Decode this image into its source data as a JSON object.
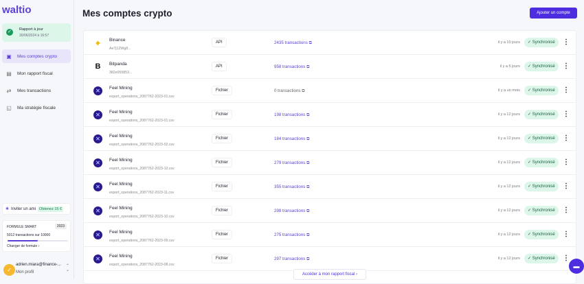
{
  "sidebar": {
    "logo": "waltio",
    "report_title": "Rapport à jour",
    "report_date": "30/06/2024 à 16:57",
    "items": [
      {
        "label": "Mes comptes crypto",
        "icon": "wallet-icon"
      },
      {
        "label": "Mon rapport fiscal",
        "icon": "document-icon"
      },
      {
        "label": "Mes transactions",
        "icon": "arrows-icon"
      },
      {
        "label": "Ma stratégie fiscale",
        "icon": "strategy-icon"
      }
    ],
    "invite": {
      "label": "Inviter un ami",
      "reward": "Obtenez 15 €"
    },
    "plan": {
      "name": "FORMULE SMART",
      "year": "2023",
      "usage": "5012 transactions sur 10000",
      "progress": 0.5012,
      "change": "Changer de formule"
    },
    "profile": {
      "email": "adrien.miara@finance-...",
      "link": "Mon profil"
    }
  },
  "header": {
    "title": "Mes comptes crypto",
    "add_button": "Ajouter un compte"
  },
  "accounts": [
    {
      "name": "Binance",
      "sub": "Ae7j1ZWg8...",
      "type": "API",
      "transactions": "2435 transactions",
      "ago": "il y a 10 jours",
      "status": "Synchronisé",
      "logo": "binance"
    },
    {
      "name": "Bitpanda",
      "sub": "382e059853...",
      "type": "API",
      "transactions": "958 transactions",
      "ago": "il y a 5 jours",
      "status": "Synchronisé",
      "logo": "bitpanda"
    },
    {
      "name": "Feel Mining",
      "sub": "export_operations_2087762-2023-01.csv",
      "type": "Fichier",
      "transactions": "0 transactions",
      "ago": "il y a un mois",
      "status": "Synchronisé",
      "logo": "feel"
    },
    {
      "name": "Feel Mining",
      "sub": "export_operations_2087762-2023-01.csv",
      "type": "Fichier",
      "transactions": "198 transactions",
      "ago": "il y a 12 jours",
      "status": "Synchronisé",
      "logo": "feel"
    },
    {
      "name": "Feel Mining",
      "sub": "export_operations_2087762-2023-02.csv",
      "type": "Fichier",
      "transactions": "184 transactions",
      "ago": "il y a 12 jours",
      "status": "Synchronisé",
      "logo": "feel"
    },
    {
      "name": "Feel Mining",
      "sub": "export_operations_2087762-2023-12.csv",
      "type": "Fichier",
      "transactions": "279 transactions",
      "ago": "il y a 12 jours",
      "status": "Synchronisé",
      "logo": "feel"
    },
    {
      "name": "Feel Mining",
      "sub": "export_operations_2087762-2023-11.csv",
      "type": "Fichier",
      "transactions": "355 transactions",
      "ago": "il y a 12 jours",
      "status": "Synchronisé",
      "logo": "feel"
    },
    {
      "name": "Feel Mining",
      "sub": "export_operations_2087762-2023-10.csv",
      "type": "Fichier",
      "transactions": "298 transactions",
      "ago": "il y a 12 jours",
      "status": "Synchronisé",
      "logo": "feel"
    },
    {
      "name": "Feel Mining",
      "sub": "export_operations_2087762-2023-09.csv",
      "type": "Fichier",
      "transactions": "275 transactions",
      "ago": "il y a 12 jours",
      "status": "Synchronisé",
      "logo": "feel"
    },
    {
      "name": "Feel Mining",
      "sub": "export_operations_2087762-2023-08.csv",
      "type": "Fichier",
      "transactions": "297 transactions",
      "ago": "il y a 12 jours",
      "status": "Synchronisé",
      "logo": "feel"
    }
  ],
  "footer": {
    "access_button": "Accéder à mon rapport fiscal"
  },
  "colors": {
    "accent": "#4e2de0",
    "success_bg": "#dcf7ea"
  }
}
